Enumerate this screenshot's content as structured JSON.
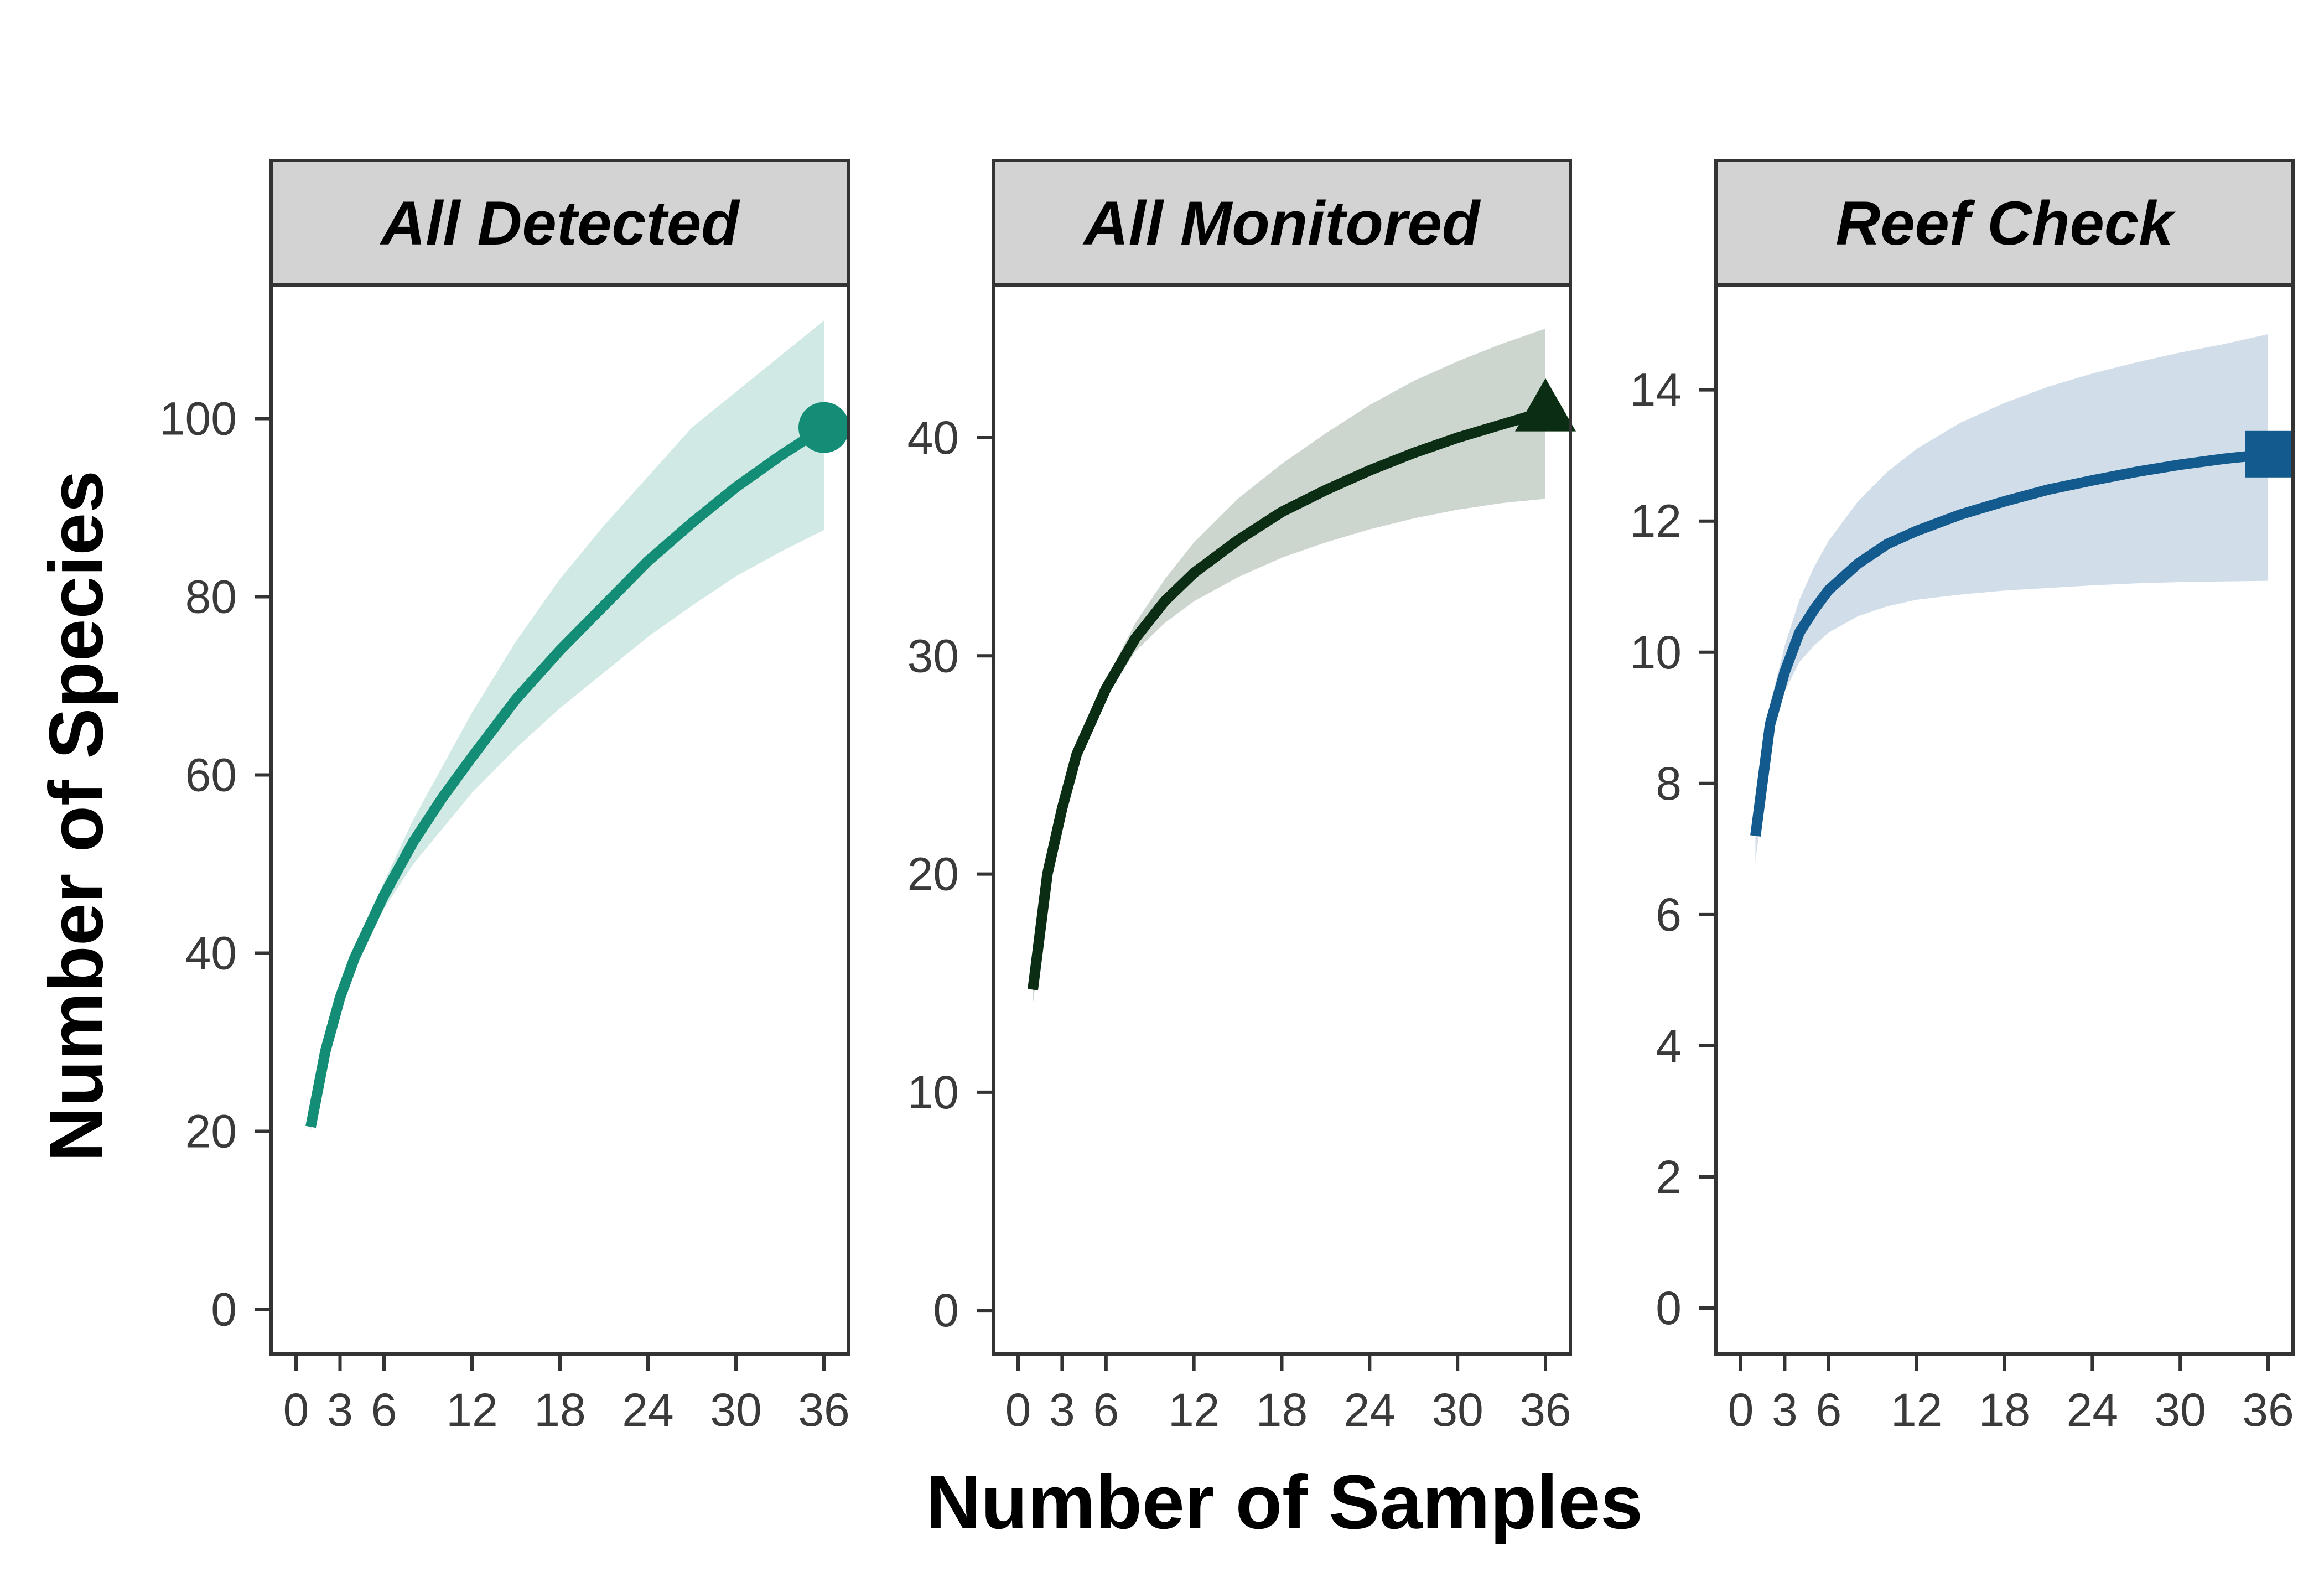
{
  "chart_data": {
    "type": "line",
    "xlabel": "Number of Samples",
    "ylabel": "Number of Species",
    "xlim": [
      0,
      36
    ],
    "x_ticks": [
      0,
      3,
      6,
      12,
      18,
      24,
      30,
      36
    ],
    "grid": false,
    "legend": "none",
    "panels": [
      {
        "title": "All Detected",
        "color": "#138d75",
        "band_color": "#d1e9e4",
        "marker": "circle",
        "ylim": [
          -5,
          115
        ],
        "y_ticks": [
          0,
          20,
          40,
          60,
          80,
          100
        ],
        "x": [
          1,
          2,
          3,
          4,
          5,
          6,
          8,
          10,
          12,
          15,
          18,
          21,
          24,
          27,
          30,
          33,
          36
        ],
        "y": [
          20.5,
          29,
          35,
          39.5,
          43,
          46.5,
          52.5,
          57.5,
          62,
          68.5,
          74,
          79,
          84,
          88.3,
          92.3,
          95.8,
          99
        ],
        "lower": [
          20,
          28.5,
          34.5,
          39,
          42,
          45,
          50,
          54,
          58,
          63,
          67.5,
          71.5,
          75.5,
          79,
          82.3,
          85,
          87.5
        ],
        "upper": [
          21,
          29.5,
          35.5,
          40.2,
          44.2,
          48,
          55,
          61,
          67,
          75,
          82,
          88,
          93.5,
          99,
          103,
          107,
          111
        ]
      },
      {
        "title": "All Monitored",
        "color": "#0b2d14",
        "band_color": "#ccd6cf",
        "marker": "triangle",
        "ylim": [
          -2,
          47
        ],
        "y_ticks": [
          0,
          10,
          20,
          30,
          40
        ],
        "x": [
          1,
          2,
          3,
          4,
          5,
          6,
          8,
          10,
          12,
          15,
          18,
          21,
          24,
          27,
          30,
          33,
          36
        ],
        "y": [
          14.7,
          20,
          23,
          25.5,
          27,
          28.5,
          30.8,
          32.5,
          33.8,
          35.3,
          36.6,
          37.6,
          38.5,
          39.3,
          40,
          40.6,
          41.2
        ],
        "lower": [
          14,
          19.6,
          22.7,
          25.2,
          26.8,
          28.2,
          30.2,
          31.5,
          32.5,
          33.6,
          34.5,
          35.2,
          35.8,
          36.3,
          36.7,
          37,
          37.2
        ],
        "upper": [
          15.2,
          20.4,
          23.3,
          25.8,
          27.3,
          28.9,
          31.5,
          33.5,
          35.2,
          37.2,
          38.8,
          40.2,
          41.5,
          42.6,
          43.5,
          44.3,
          45
        ]
      },
      {
        "title": "Reef Check",
        "color": "#135a8e",
        "band_color": "#d1dee9",
        "marker": "square",
        "ylim": [
          -0.7,
          15.6
        ],
        "y_ticks": [
          0,
          2,
          4,
          6,
          8,
          10,
          12,
          14
        ],
        "x": [
          1,
          2,
          3,
          4,
          5,
          6,
          8,
          10,
          12,
          15,
          18,
          21,
          24,
          27,
          30,
          33,
          36
        ],
        "y": [
          7.2,
          8.9,
          9.7,
          10.3,
          10.65,
          10.95,
          11.35,
          11.65,
          11.85,
          12.1,
          12.3,
          12.48,
          12.62,
          12.75,
          12.86,
          12.95,
          13.02
        ],
        "lower": [
          6.8,
          8.7,
          9.4,
          9.85,
          10.1,
          10.3,
          10.55,
          10.7,
          10.8,
          10.88,
          10.94,
          10.98,
          11.02,
          11.05,
          11.07,
          11.08,
          11.09
        ],
        "upper": [
          7.5,
          9.2,
          10.1,
          10.8,
          11.3,
          11.7,
          12.3,
          12.75,
          13.1,
          13.5,
          13.8,
          14.05,
          14.25,
          14.42,
          14.57,
          14.7,
          14.85
        ]
      }
    ]
  }
}
